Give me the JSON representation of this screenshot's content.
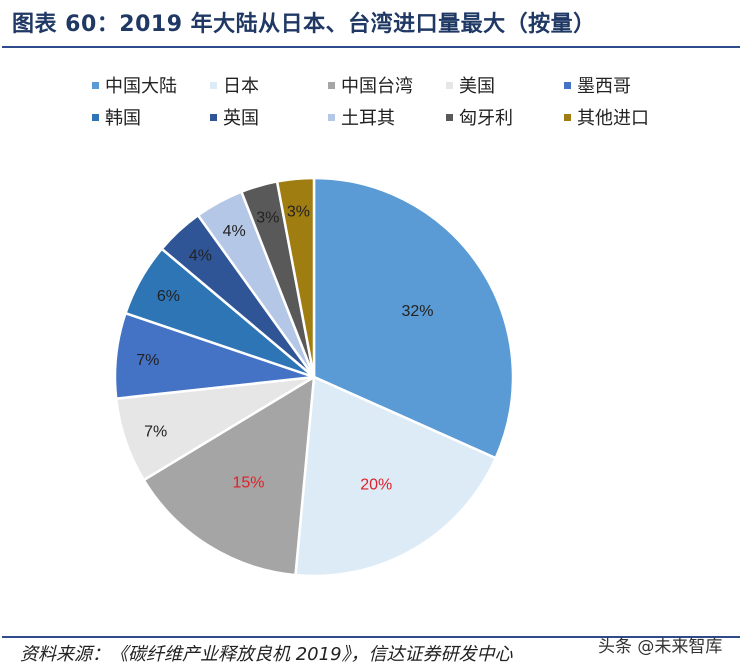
{
  "title": "图表 60：2019 年大陆从日本、台湾进口量最大（按量）",
  "source": "资料来源：《碳纤维产业释放良机 2019》，信达证券研发中心",
  "watermark": "头条 @未来智库",
  "chart_data": {
    "type": "pie",
    "start": "top, clockwise",
    "legend_position": "top",
    "categories": [
      "中国大陆",
      "日本",
      "中国台湾",
      "美国",
      "墨西哥",
      "韩国",
      "英国",
      "土耳其",
      "匈牙利",
      "其他进口"
    ],
    "values": [
      32,
      20,
      15,
      7,
      7,
      6,
      4,
      4,
      3,
      3
    ],
    "labels": [
      "32%",
      "20%",
      "15%",
      "7%",
      "7%",
      "6%",
      "4%",
      "4%",
      "3%",
      "3%"
    ],
    "colors": [
      "#5b9bd5",
      "#ddebf7",
      "#a5a5a5",
      "#e7e6e6",
      "#4472c4",
      "#2e75b6",
      "#2f5597",
      "#b4c7e7",
      "#595959",
      "#a07d10"
    ],
    "label_colors": [
      "#222222",
      "#e0202a",
      "#e0202a",
      "#222222",
      "#222222",
      "#222222",
      "#222222",
      "#222222",
      "#222222",
      "#222222"
    ]
  }
}
